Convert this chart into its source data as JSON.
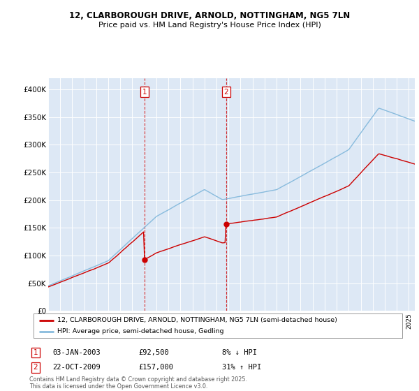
{
  "title_line1": "12, CLARBOROUGH DRIVE, ARNOLD, NOTTINGHAM, NG5 7LN",
  "title_line2": "Price paid vs. HM Land Registry's House Price Index (HPI)",
  "legend_property": "12, CLARBOROUGH DRIVE, ARNOLD, NOTTINGHAM, NG5 7LN (semi-detached house)",
  "legend_hpi": "HPI: Average price, semi-detached house, Gedling",
  "annotation1_label": "1",
  "annotation1_date": "03-JAN-2003",
  "annotation1_price": "£92,500",
  "annotation1_note": "8% ↓ HPI",
  "annotation2_label": "2",
  "annotation2_date": "22-OCT-2009",
  "annotation2_price": "£157,000",
  "annotation2_note": "31% ↑ HPI",
  "footnote": "Contains HM Land Registry data © Crown copyright and database right 2025.\nThis data is licensed under the Open Government Licence v3.0.",
  "property_color": "#cc0000",
  "hpi_color": "#88bbdd",
  "vline_color": "#cc0000",
  "background_color": "#ffffff",
  "plot_bg_color": "#dde8f5",
  "ylim": [
    0,
    420000
  ],
  "yticks": [
    0,
    50000,
    100000,
    150000,
    200000,
    250000,
    300000,
    350000,
    400000
  ],
  "ytick_labels": [
    "£0",
    "£50K",
    "£100K",
    "£150K",
    "£200K",
    "£250K",
    "£300K",
    "£350K",
    "£400K"
  ],
  "sale1_x": 2003.01,
  "sale1_y": 92500,
  "sale2_x": 2009.8,
  "sale2_y": 157000,
  "xmin": 1995,
  "xmax": 2025.5
}
